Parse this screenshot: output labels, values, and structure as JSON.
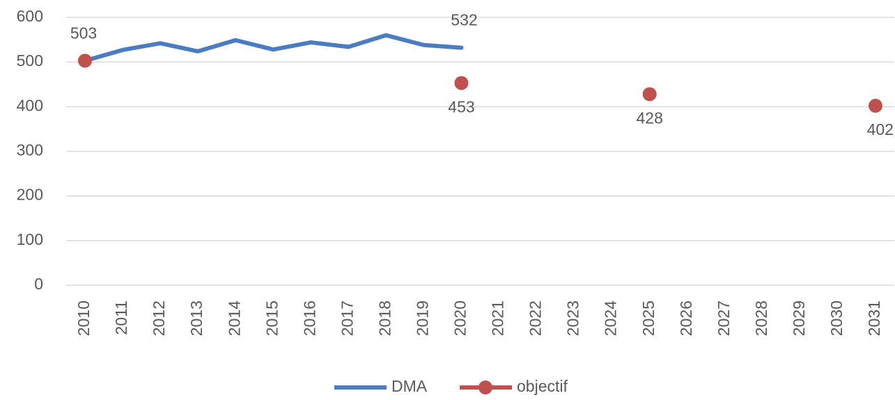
{
  "chart_data": {
    "type": "line",
    "categories": [
      "2010",
      "2011",
      "2012",
      "2013",
      "2014",
      "2015",
      "2016",
      "2017",
      "2018",
      "2019",
      "2020",
      "2021",
      "2022",
      "2023",
      "2024",
      "2025",
      "2026",
      "2027",
      "2028",
      "2029",
      "2030",
      "2031"
    ],
    "series": [
      {
        "name": "DMA",
        "color": "#4a7cc2",
        "marker": false,
        "values": [
          503,
          527,
          542,
          524,
          549,
          528,
          544,
          534,
          560,
          538,
          532,
          null,
          null,
          null,
          null,
          null,
          null,
          null,
          null,
          null,
          null,
          null
        ],
        "value_labels": [
          null,
          null,
          null,
          null,
          null,
          null,
          null,
          null,
          null,
          null,
          "532",
          null,
          null,
          null,
          null,
          null,
          null,
          null,
          null,
          null,
          null,
          null
        ]
      },
      {
        "name": "objectif",
        "color": "#c0504d",
        "marker": true,
        "values": [
          503,
          null,
          null,
          null,
          null,
          null,
          null,
          null,
          null,
          null,
          453,
          null,
          null,
          null,
          null,
          428,
          null,
          null,
          null,
          null,
          null,
          402
        ],
        "value_labels": [
          "503",
          null,
          null,
          null,
          null,
          null,
          null,
          null,
          null,
          null,
          "453",
          null,
          null,
          null,
          null,
          "428",
          null,
          null,
          null,
          null,
          null,
          "402"
        ]
      }
    ],
    "ylim": [
      0,
      600
    ],
    "yticks": [
      0,
      100,
      200,
      300,
      400,
      500,
      600
    ],
    "grid": true,
    "legend": "bottom"
  }
}
